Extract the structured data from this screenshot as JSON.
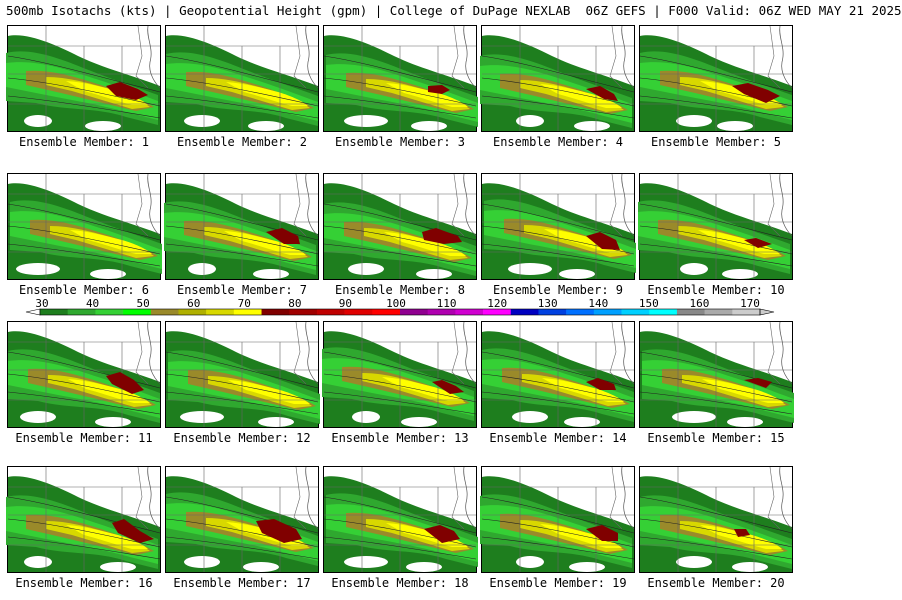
{
  "header": {
    "title": "500mb Isotachs (kts) | Geopotential Height (gpm) | College of DuPage NEXLAB  06Z GEFS | F000 Valid: 06Z WED MAY 21 2025"
  },
  "colorbar": {
    "ticks": [
      "30",
      "40",
      "50",
      "60",
      "70",
      "80",
      "90",
      "100",
      "110",
      "120",
      "130",
      "140",
      "150",
      "160",
      "170"
    ],
    "colors": [
      "#1e7e1e",
      "#2fa82f",
      "#35d035",
      "#00ff00",
      "#9a8a2a",
      "#b0b000",
      "#d8d800",
      "#ffff00",
      "#800000",
      "#a00000",
      "#c00000",
      "#e00000",
      "#ff0000",
      "#900090",
      "#b000b0",
      "#d000d0",
      "#ff00ff",
      "#0000c0",
      "#0040e0",
      "#0070ff",
      "#00a0ff",
      "#00d0ff",
      "#00ffff",
      "#888888",
      "#aaaaaa",
      "#cccccc"
    ]
  },
  "panels": [
    {
      "label": "Ensemble Member: 1",
      "core": "a"
    },
    {
      "label": "Ensemble Member: 2",
      "core": "none"
    },
    {
      "label": "Ensemble Member: 3",
      "core": "b"
    },
    {
      "label": "Ensemble Member: 4",
      "core": "c"
    },
    {
      "label": "Ensemble Member: 5",
      "core": "d"
    },
    {
      "label": "Ensemble Member: 6",
      "core": "none"
    },
    {
      "label": "Ensemble Member: 7",
      "core": "e"
    },
    {
      "label": "Ensemble Member: 8",
      "core": "f"
    },
    {
      "label": "Ensemble Member: 9",
      "core": "g"
    },
    {
      "label": "Ensemble Member: 10",
      "core": "h"
    },
    {
      "label": "Ensemble Member: 11",
      "core": "i"
    },
    {
      "label": "Ensemble Member: 12",
      "core": "none"
    },
    {
      "label": "Ensemble Member: 13",
      "core": "j"
    },
    {
      "label": "Ensemble Member: 14",
      "core": "k"
    },
    {
      "label": "Ensemble Member: 15",
      "core": "l"
    },
    {
      "label": "Ensemble Member: 16",
      "core": "m"
    },
    {
      "label": "Ensemble Member: 17",
      "core": "n"
    },
    {
      "label": "Ensemble Member: 18",
      "core": "o"
    },
    {
      "label": "Ensemble Member: 19",
      "core": "p"
    },
    {
      "label": "Ensemble Member: 20",
      "core": "q"
    }
  ]
}
